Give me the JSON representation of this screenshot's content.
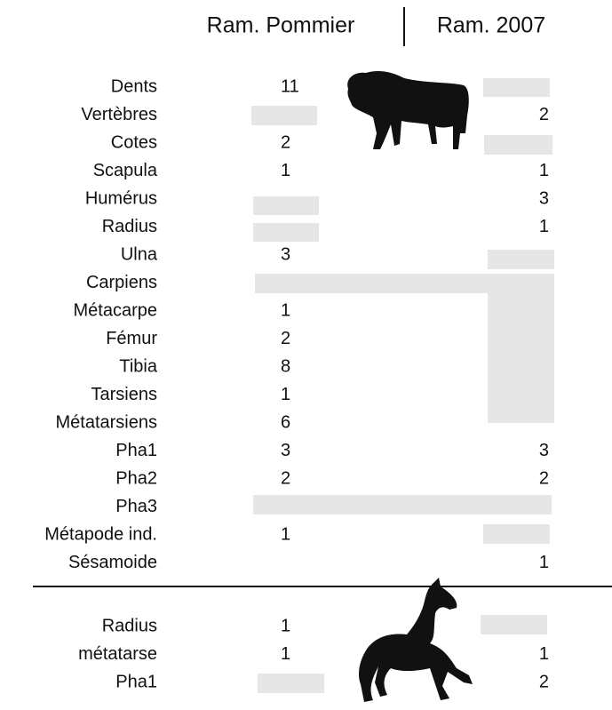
{
  "header": {
    "columns": [
      "Ram. Pommier",
      "Ram. 2007"
    ]
  },
  "sections": [
    {
      "rows": [
        {
          "label": "Dents",
          "pommier": 11,
          "ram2007": null
        },
        {
          "label": "Vertèbres",
          "pommier": null,
          "ram2007": 2
        },
        {
          "label": "Cotes",
          "pommier": 2,
          "ram2007": null
        },
        {
          "label": "Scapula",
          "pommier": 1,
          "ram2007": 1
        },
        {
          "label": "Humérus",
          "pommier": null,
          "ram2007": 3
        },
        {
          "label": "Radius",
          "pommier": null,
          "ram2007": 1
        },
        {
          "label": "Ulna",
          "pommier": 3,
          "ram2007": null
        },
        {
          "label": "Carpiens",
          "pommier": null,
          "ram2007": null
        },
        {
          "label": "Métacarpe",
          "pommier": 1,
          "ram2007": null
        },
        {
          "label": "Fémur",
          "pommier": 2,
          "ram2007": null
        },
        {
          "label": "Tibia",
          "pommier": 8,
          "ram2007": null
        },
        {
          "label": "Tarsiens",
          "pommier": 1,
          "ram2007": null
        },
        {
          "label": "Métatarsiens",
          "pommier": 6,
          "ram2007": null
        },
        {
          "label": "Pha1",
          "pommier": 3,
          "ram2007": 3
        },
        {
          "label": "Pha2",
          "pommier": 2,
          "ram2007": 2
        },
        {
          "label": "Pha3",
          "pommier": null,
          "ram2007": null
        },
        {
          "label": "Métapode ind.",
          "pommier": 1,
          "ram2007": null
        },
        {
          "label": "Sésamoide",
          "pommier": null,
          "ram2007": 1
        }
      ]
    },
    {
      "rows": [
        {
          "label": "Radius",
          "pommier": 1,
          "ram2007": null
        },
        {
          "label": "métatarse",
          "pommier": 1,
          "ram2007": 1
        },
        {
          "label": "Pha1",
          "pommier": null,
          "ram2007": 2
        }
      ]
    }
  ]
}
